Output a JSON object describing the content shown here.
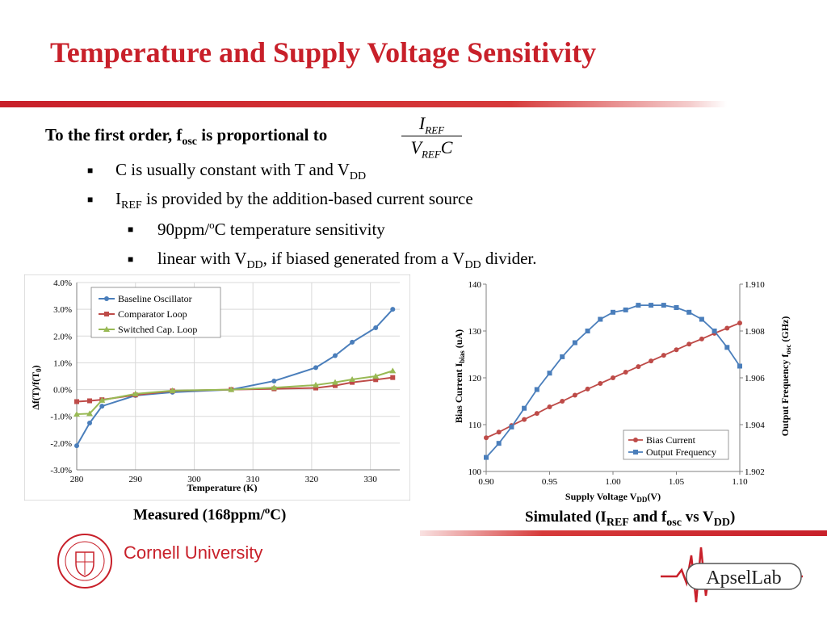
{
  "slide": {
    "title": "Temperature and Supply Voltage Sensitivity",
    "lead": {
      "pre": "To the first order, f",
      "sub": "osc",
      "post": " is proportional to"
    },
    "formula": {
      "num": "I",
      "num_sub": "REF",
      "den": "V",
      "den_sub": "REF",
      "den_post": "C"
    },
    "bullets": [
      {
        "pre": "C is usually constant with T and V",
        "sub": "DD",
        "post": ""
      },
      {
        "pre": "I",
        "sub": "REF",
        "post": " is provided by the addition-based current source"
      }
    ],
    "subbullets": [
      {
        "pre": "90ppm/",
        "sup": "o",
        "post": "C temperature sensitivity"
      },
      {
        "pre": "linear with V",
        "sub1": "DD",
        "mid": ", if biased generated from a V",
        "sub2": "DD",
        "post": " divider."
      }
    ],
    "caption_left": {
      "pre": "Measured (168ppm/",
      "sup": "o",
      "post": "C)"
    },
    "caption_right": {
      "pre": "Simulated (I",
      "sub1": "REF",
      "mid1": " and f",
      "sub2": "osc",
      "mid2": " vs V",
      "sub3": "DD",
      "post": ")"
    },
    "logo_left": "Cornell University",
    "logo_right": "ApselLab",
    "colors": {
      "title": "#c8202a",
      "blue": "#4a7ebb",
      "red": "#be4b48",
      "green": "#98b954"
    }
  },
  "chart_data": [
    {
      "type": "line",
      "xlabel": "Temperature (K)",
      "ylabel": "Δf(T)/f(T",
      "ylabel_sub": "0",
      "ylabel_post": ")",
      "xlim": [
        280,
        335
      ],
      "ylim": [
        -3.0,
        4.0
      ],
      "xticks": [
        "280",
        "290",
        "300",
        "310",
        "320",
        "330"
      ],
      "yticks": [
        "-3.0%",
        "-2.0%",
        "-1.0%",
        "0.0%",
        "1.0%",
        "2.0%",
        "3.0%",
        "4.0%"
      ],
      "grid": true,
      "legend": "top-left",
      "series": [
        {
          "name": "Baseline Oscillator",
          "color": "#4a7ebb",
          "marker": "circle",
          "x": [
            280,
            282.2,
            284.3,
            290,
            296.3,
            306.3,
            313.6,
            320.7,
            324,
            326.9,
            330.9,
            333.8
          ],
          "y": [
            -2.1,
            -1.25,
            -0.62,
            -0.22,
            -0.1,
            0.0,
            0.32,
            0.82,
            1.27,
            1.77,
            2.31,
            3.0
          ]
        },
        {
          "name": "Comparator Loop",
          "color": "#be4b48",
          "marker": "square",
          "x": [
            280,
            282.2,
            284.3,
            290,
            296.3,
            306.3,
            313.6,
            320.7,
            324,
            326.9,
            330.9,
            333.8
          ],
          "y": [
            -0.45,
            -0.42,
            -0.38,
            -0.2,
            -0.05,
            0.0,
            0.03,
            0.06,
            0.15,
            0.27,
            0.37,
            0.45
          ]
        },
        {
          "name": "Switched Cap. Loop",
          "color": "#98b954",
          "marker": "triangle",
          "x": [
            280,
            282.2,
            284.3,
            290,
            296.3,
            306.3,
            313.6,
            320.7,
            324,
            326.9,
            330.9,
            333.8
          ],
          "y": [
            -0.92,
            -0.9,
            -0.4,
            -0.16,
            -0.04,
            0.0,
            0.07,
            0.17,
            0.27,
            0.38,
            0.5,
            0.7
          ]
        }
      ]
    },
    {
      "type": "line",
      "xlabel": "Supply Voltage V",
      "xlabel_sub": "DD",
      "xlabel_post": "(V)",
      "ylabel": "Bias Current I",
      "ylabel_sub": "bias",
      "ylabel_post": " (uA)",
      "y2label": "Output Frequency f",
      "y2label_sub": "osc",
      "y2label_post": " (GHz)",
      "xlim": [
        0.9,
        1.1
      ],
      "ylim": [
        100,
        140
      ],
      "y2lim": [
        1.902,
        1.91
      ],
      "xticks": [
        "0.90",
        "0.95",
        "1.00",
        "1.05",
        "1.10"
      ],
      "yticks": [
        "100",
        "110",
        "120",
        "130",
        "140"
      ],
      "y2ticks": [
        "1.902",
        "1.904",
        "1.906",
        "1.908",
        "1.910"
      ],
      "grid": false,
      "legend": "bottom-center",
      "series": [
        {
          "name": "Bias Current",
          "color": "#be4b48",
          "marker": "circle",
          "axis": "left",
          "x": [
            0.9,
            0.91,
            0.92,
            0.93,
            0.94,
            0.95,
            0.96,
            0.97,
            0.98,
            0.99,
            1.0,
            1.01,
            1.02,
            1.03,
            1.04,
            1.05,
            1.06,
            1.07,
            1.08,
            1.09,
            1.1
          ],
          "y": [
            107.2,
            108.4,
            109.8,
            111.1,
            112.4,
            113.8,
            115.0,
            116.3,
            117.6,
            118.8,
            120.0,
            121.2,
            122.4,
            123.6,
            124.8,
            126.0,
            127.2,
            128.3,
            129.5,
            130.6,
            131.7
          ]
        },
        {
          "name": "Output Frequency",
          "color": "#4a7ebb",
          "marker": "square",
          "axis": "right",
          "x": [
            0.9,
            0.91,
            0.92,
            0.93,
            0.94,
            0.95,
            0.96,
            0.97,
            0.98,
            0.99,
            1.0,
            1.01,
            1.02,
            1.03,
            1.04,
            1.05,
            1.06,
            1.07,
            1.08,
            1.09,
            1.1
          ],
          "y": [
            1.9026,
            1.9032,
            1.9039,
            1.9047,
            1.9055,
            1.9062,
            1.9069,
            1.9075,
            1.908,
            1.9085,
            1.9088,
            1.9089,
            1.9091,
            1.9091,
            1.9091,
            1.909,
            1.9088,
            1.9085,
            1.908,
            1.9073,
            1.9065
          ]
        }
      ]
    }
  ]
}
